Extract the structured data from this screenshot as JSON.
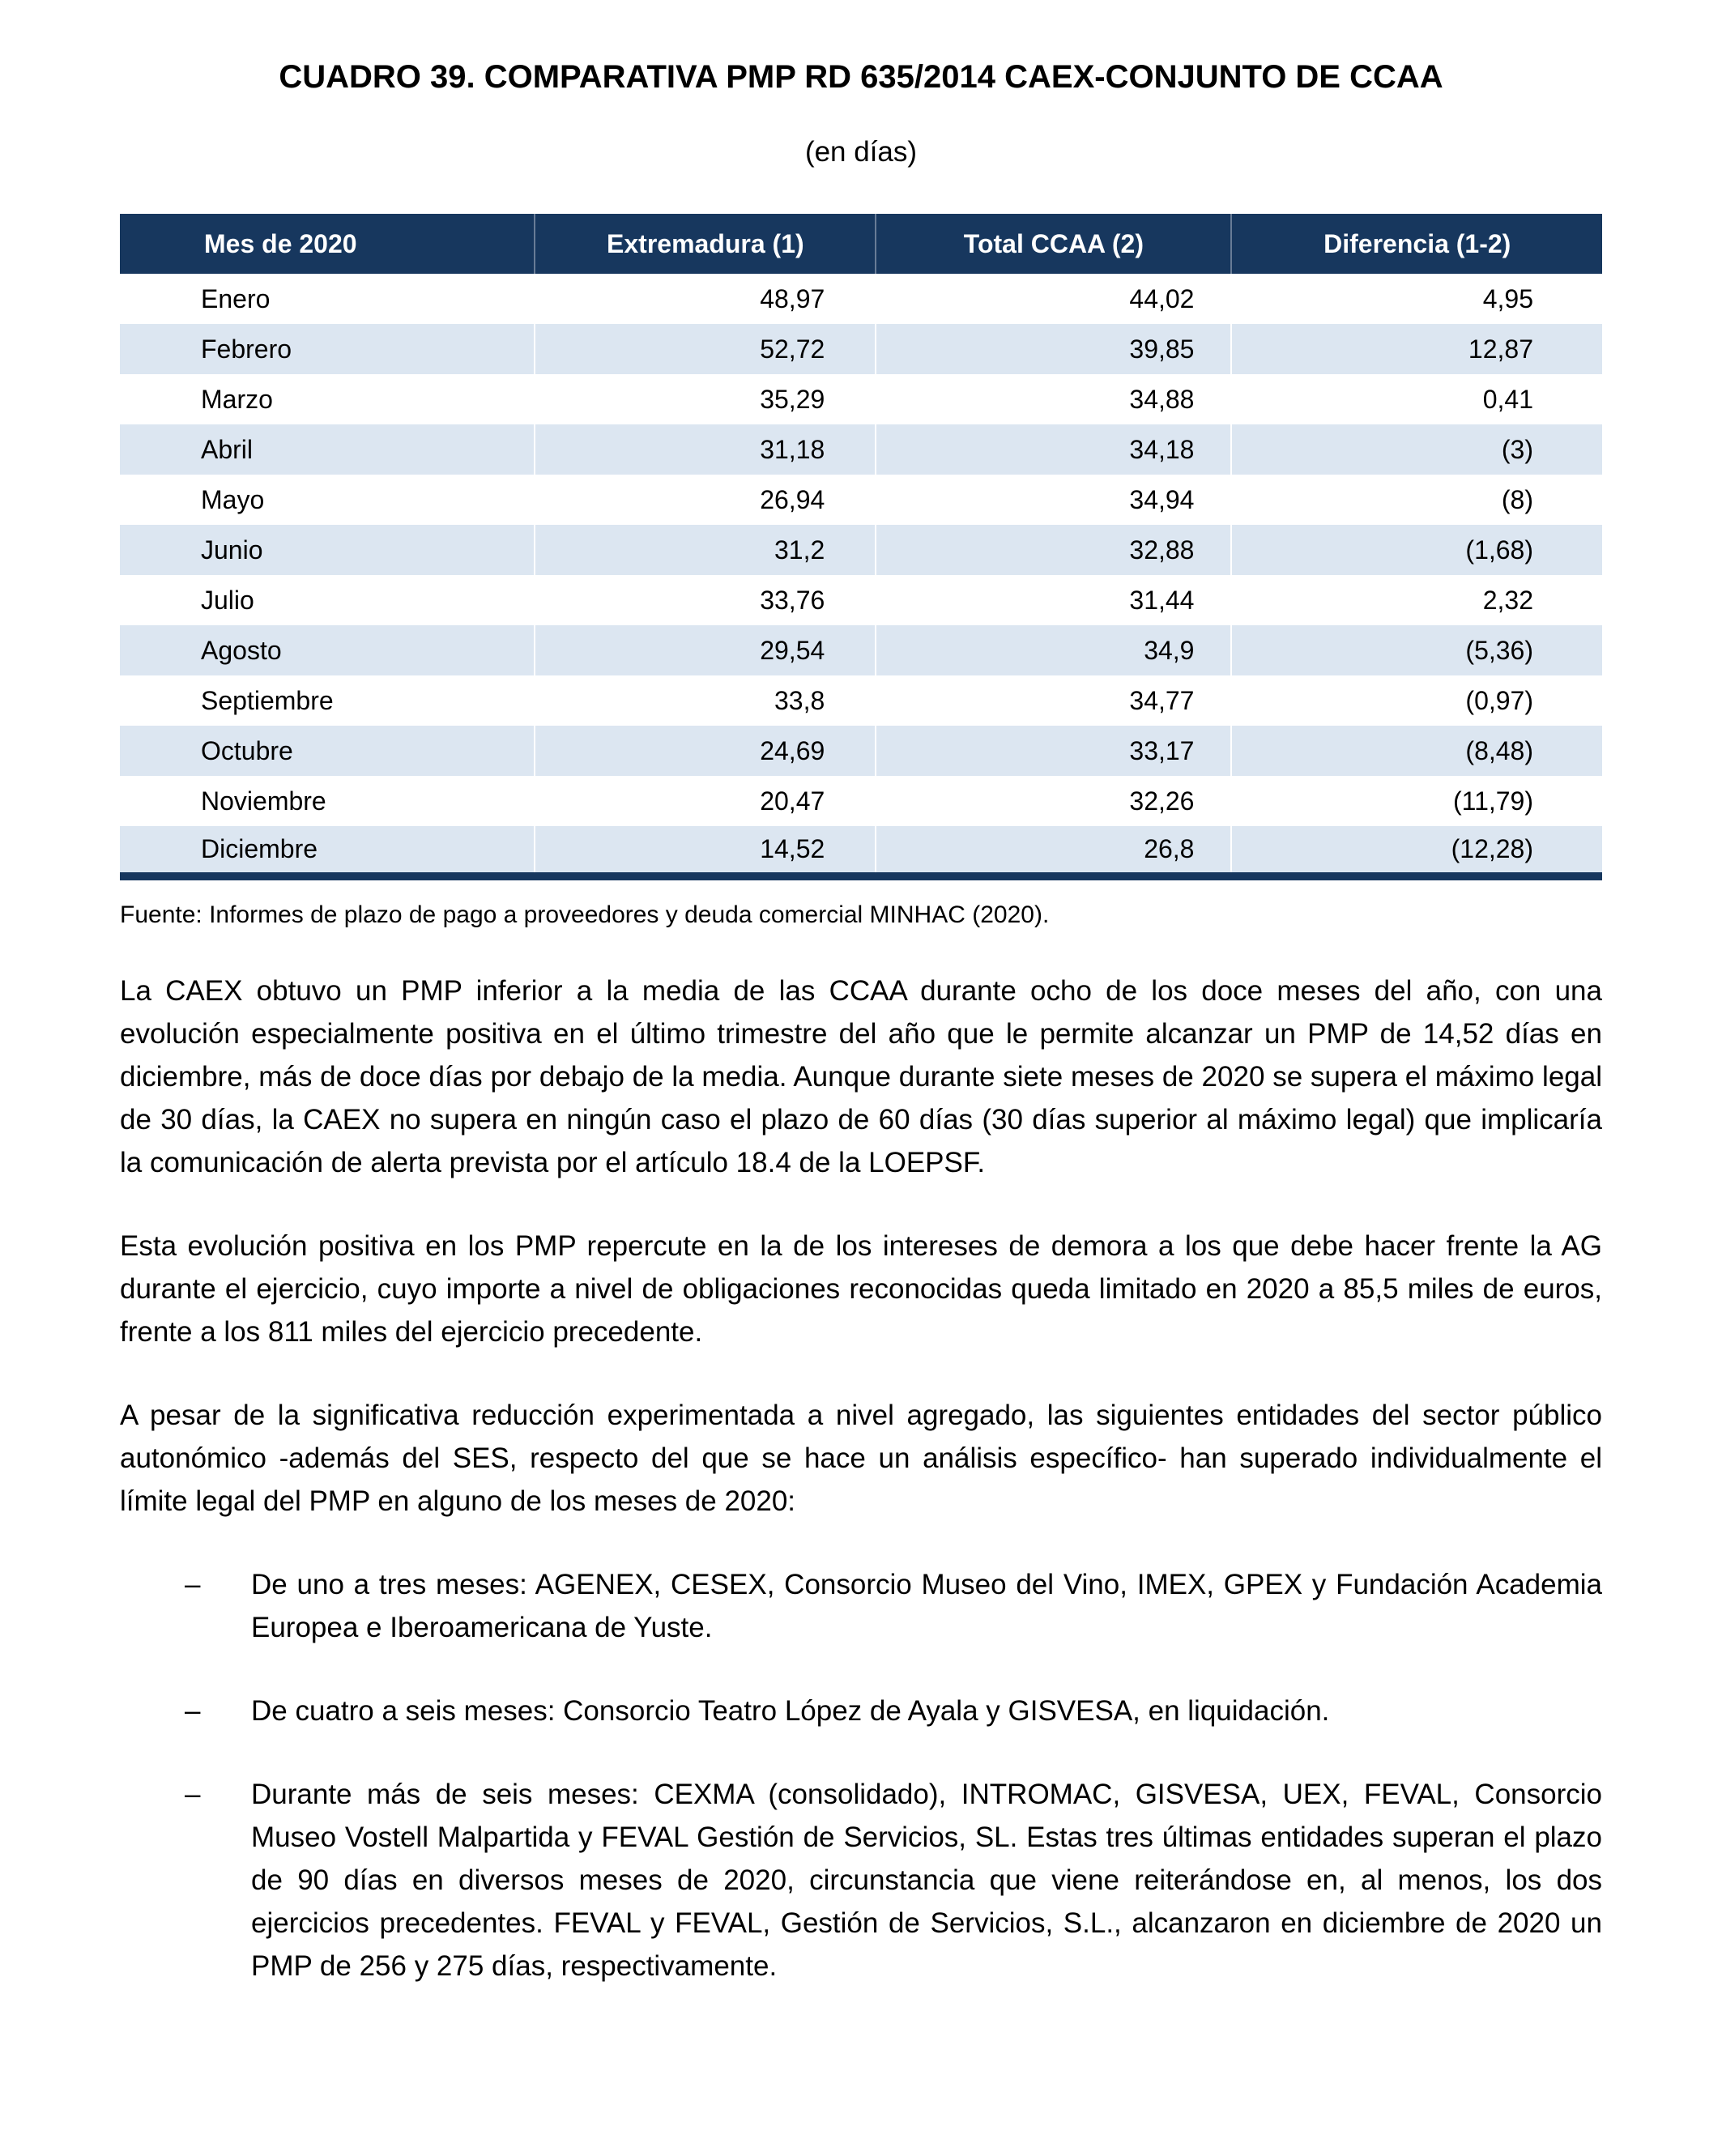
{
  "title": "CUADRO 39. COMPARATIVA PMP RD 635/2014 CAEX-CONJUNTO DE CCAA",
  "subtitle": "(en días)",
  "table": {
    "headers": [
      "Mes de 2020",
      "Extremadura (1)",
      "Total CCAA (2)",
      "Diferencia (1-2)"
    ],
    "rows": [
      [
        "Enero",
        "48,97",
        "44,02",
        "4,95"
      ],
      [
        "Febrero",
        "52,72",
        "39,85",
        "12,87"
      ],
      [
        "Marzo",
        "35,29",
        "34,88",
        "0,41"
      ],
      [
        "Abril",
        "31,18",
        "34,18",
        "(3)"
      ],
      [
        "Mayo",
        "26,94",
        "34,94",
        "(8)"
      ],
      [
        "Junio",
        "31,2",
        "32,88",
        "(1,68)"
      ],
      [
        "Julio",
        "33,76",
        "31,44",
        "2,32"
      ],
      [
        "Agosto",
        "29,54",
        "34,9",
        "(5,36)"
      ],
      [
        "Septiembre",
        "33,8",
        "34,77",
        "(0,97)"
      ],
      [
        "Octubre",
        "24,69",
        "33,17",
        "(8,48)"
      ],
      [
        "Noviembre",
        "20,47",
        "32,26",
        "(11,79)"
      ],
      [
        "Diciembre",
        "14,52",
        "26,8",
        "(12,28)"
      ]
    ]
  },
  "source": "Fuente: Informes de plazo de pago a proveedores y deuda comercial MINHAC (2020).",
  "paragraphs": [
    "La CAEX obtuvo un PMP inferior a la media de las CCAA durante ocho de los doce meses del año, con una evolución especialmente positiva en el último trimestre del año que le permite alcanzar un PMP de 14,52 días en diciembre, más de doce días por debajo de la media. Aunque durante siete meses de 2020 se supera el máximo legal de 30 días, la CAEX no supera en ningún caso el plazo de 60 días (30 días superior al máximo legal) que implicaría la comunicación de alerta prevista por el artículo 18.4 de la LOEPSF.",
    "Esta evolución positiva en los PMP repercute en la de los intereses de demora a los que debe hacer frente la AG durante el ejercicio, cuyo importe a nivel de obligaciones reconocidas queda limitado en 2020 a 85,5 miles de euros, frente a los 811 miles del ejercicio precedente.",
    "A pesar de la significativa reducción experimentada a nivel agregado, las siguientes entidades del sector público autonómico -además del SES, respecto del que se hace un análisis específico- han superado individualmente el límite legal del PMP en alguno de los meses de 2020:"
  ],
  "list": {
    "marker": "–",
    "items": [
      "De uno a tres meses: AGENEX, CESEX, Consorcio Museo del Vino, IMEX, GPEX y Fundación Academia Europea e Iberoamericana de Yuste.",
      "De cuatro a seis meses: Consorcio Teatro López de Ayala y GISVESA, en liquidación.",
      "Durante más de seis meses: CEXMA (consolidado), INTROMAC, GISVESA, UEX, FEVAL, Consorcio Museo Vostell Malpartida y FEVAL Gestión de Servicios, SL. Estas tres últimas entidades superan el plazo de 90 días en diversos meses de 2020, circunstancia que viene reiterándose en, al menos, los dos ejercicios precedentes. FEVAL y FEVAL, Gestión de Servicios, S.L., alcanzaron en diciembre de 2020 un PMP de 256 y 275 días, respectivamente."
    ]
  },
  "colors": {
    "header_bg": "#17375e",
    "row_alt": "#dce6f1",
    "header_text": "#ffffff",
    "body_text": "#000000"
  }
}
